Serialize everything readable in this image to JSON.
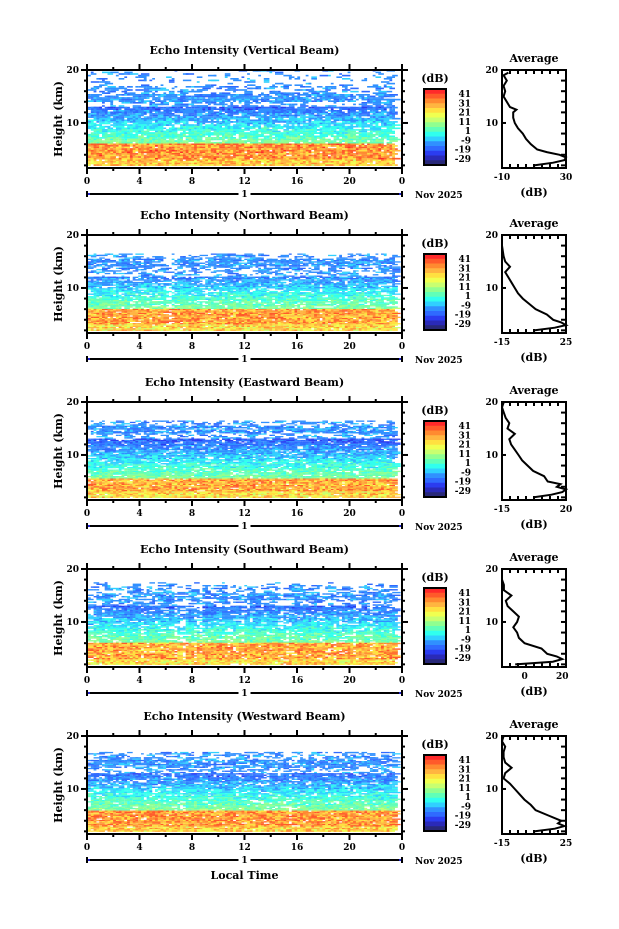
{
  "chart_data": {
    "type": "heatmap",
    "panels": [
      {
        "title": "Echo Intensity (Vertical Beam)",
        "ylabel": "Height (km)",
        "yticks": [
          "20",
          "10"
        ],
        "xticks": [
          "0",
          "4",
          "8",
          "12",
          "16",
          "20",
          "0"
        ],
        "day_label": "1",
        "month_label": "Nov 2025",
        "colorbar_unit": "(dB)",
        "colorbar_ticks": [
          "41",
          "31",
          "21",
          "11",
          "1",
          "-9",
          "-19",
          "-29"
        ],
        "avg_title": "Average",
        "avg_yticks": [
          "20",
          "10"
        ],
        "avg_xticks": [
          "-10",
          "30"
        ],
        "avg_xlim": [
          -10,
          30
        ],
        "avg_xlabel": "(dB)",
        "avg_profile": [
          [
            2,
            10
          ],
          [
            2.5,
            22
          ],
          [
            3,
            29
          ],
          [
            3.5,
            30
          ],
          [
            4,
            26
          ],
          [
            4.5,
            18
          ],
          [
            5,
            12
          ],
          [
            6,
            8
          ],
          [
            7,
            5
          ],
          [
            8,
            3
          ],
          [
            9,
            0
          ],
          [
            10,
            -2
          ],
          [
            11,
            -3
          ],
          [
            12,
            -3
          ],
          [
            12.5,
            -1
          ],
          [
            13,
            -5
          ],
          [
            14,
            -7
          ],
          [
            15,
            -9
          ],
          [
            16,
            -8
          ],
          [
            17,
            -9
          ],
          [
            18,
            -7
          ],
          [
            19,
            -9
          ],
          [
            19.5,
            -6
          ]
        ],
        "beam": {
          "top_km": 19.5,
          "strong_km": [
            2.5,
            6
          ],
          "mid_km": [
            6,
            13
          ],
          "gaps": 0.08,
          "hot": 0.8
        }
      },
      {
        "title": "Echo Intensity (Northward Beam)",
        "ylabel": "Height (km)",
        "yticks": [
          "20",
          "10"
        ],
        "xticks": [
          "0",
          "4",
          "8",
          "12",
          "16",
          "20",
          "0"
        ],
        "day_label": "1",
        "month_label": "Nov 2025",
        "colorbar_unit": "(dB)",
        "colorbar_ticks": [
          "41",
          "31",
          "21",
          "11",
          "1",
          "-9",
          "-19",
          "-29"
        ],
        "avg_title": "Average",
        "avg_yticks": [
          "20",
          "10"
        ],
        "avg_xticks": [
          "-15",
          "25"
        ],
        "avg_xlim": [
          -15,
          25
        ],
        "avg_xlabel": "(dB)",
        "avg_profile": [
          [
            2,
            5
          ],
          [
            2.5,
            18
          ],
          [
            3,
            25
          ],
          [
            3.5,
            22
          ],
          [
            4,
            17
          ],
          [
            5,
            13
          ],
          [
            6,
            6
          ],
          [
            7,
            2
          ],
          [
            8,
            -2
          ],
          [
            9,
            -5
          ],
          [
            10,
            -7
          ],
          [
            11,
            -9
          ],
          [
            12,
            -11
          ],
          [
            13,
            -13
          ],
          [
            14,
            -10
          ],
          [
            15,
            -13
          ],
          [
            16,
            -14
          ],
          [
            18,
            -15
          ],
          [
            20,
            -15
          ]
        ],
        "beam": {
          "top_km": 16,
          "strong_km": [
            2.5,
            6
          ],
          "mid_km": [
            6,
            12
          ],
          "gaps": 0.25,
          "hot": 0.5
        }
      },
      {
        "title": "Echo Intensity (Eastward Beam)",
        "ylabel": "Height (km)",
        "yticks": [
          "20",
          "10"
        ],
        "xticks": [
          "0",
          "4",
          "8",
          "12",
          "16",
          "20",
          "0"
        ],
        "day_label": "1",
        "month_label": "Nov 2025",
        "colorbar_unit": "(dB)",
        "colorbar_ticks": [
          "41",
          "31",
          "21",
          "11",
          "1",
          "-9",
          "-19",
          "-29"
        ],
        "avg_title": "Average",
        "avg_yticks": [
          "20",
          "10"
        ],
        "avg_xticks": [
          "-15",
          "20"
        ],
        "avg_xlim": [
          -15,
          20
        ],
        "avg_xlabel": "(dB)",
        "avg_profile": [
          [
            2,
            2
          ],
          [
            2.5,
            12
          ],
          [
            3,
            18
          ],
          [
            3.5,
            20
          ],
          [
            4,
            15
          ],
          [
            4.5,
            17
          ],
          [
            5,
            10
          ],
          [
            6,
            8
          ],
          [
            7,
            2
          ],
          [
            8,
            -1
          ],
          [
            9,
            -4
          ],
          [
            10,
            -6
          ],
          [
            11,
            -8
          ],
          [
            12,
            -10
          ],
          [
            13,
            -11
          ],
          [
            14,
            -8
          ],
          [
            15,
            -12
          ],
          [
            16,
            -11
          ],
          [
            17,
            -13
          ],
          [
            18,
            -14
          ],
          [
            19,
            -15
          ],
          [
            20,
            -14
          ]
        ],
        "beam": {
          "top_km": 16,
          "strong_km": [
            2.5,
            5.5
          ],
          "mid_km": [
            5.5,
            13
          ],
          "gaps": 0.15,
          "hot": 0.4
        }
      },
      {
        "title": "Echo Intensity (Southward Beam)",
        "ylabel": "Height (km)",
        "yticks": [
          "20",
          "10"
        ],
        "xticks": [
          "0",
          "4",
          "8",
          "12",
          "16",
          "20",
          "0"
        ],
        "day_label": "1",
        "month_label": "Nov 2025",
        "colorbar_unit": "(dB)",
        "colorbar_ticks": [
          "41",
          "31",
          "21",
          "11",
          "1",
          "-9",
          "-19",
          "-29"
        ],
        "avg_title": "Average",
        "avg_yticks": [
          "20",
          "10"
        ],
        "avg_xticks": [
          "0",
          "20"
        ],
        "avg_xlim": [
          -12,
          22
        ],
        "avg_xlabel": "(dB)",
        "avg_profile": [
          [
            2,
            -5
          ],
          [
            2.5,
            15
          ],
          [
            3,
            20
          ],
          [
            3.5,
            17
          ],
          [
            4,
            12
          ],
          [
            5,
            9
          ],
          [
            6,
            0
          ],
          [
            7,
            -3
          ],
          [
            8,
            -4
          ],
          [
            9,
            -6
          ],
          [
            10,
            -4
          ],
          [
            11,
            -3
          ],
          [
            12,
            -6
          ],
          [
            13,
            -9
          ],
          [
            14,
            -10
          ],
          [
            15,
            -7
          ],
          [
            16,
            -11
          ],
          [
            17,
            -11
          ],
          [
            18,
            -12
          ],
          [
            20,
            -12
          ]
        ],
        "beam": {
          "top_km": 17,
          "strong_km": [
            2.5,
            6
          ],
          "mid_km": [
            6,
            13
          ],
          "gaps": 0.45,
          "hot": 0.5
        }
      },
      {
        "title": "Echo Intensity (Westward Beam)",
        "ylabel": "Height (km)",
        "yticks": [
          "20",
          "10"
        ],
        "xticks": [
          "0",
          "4",
          "8",
          "12",
          "16",
          "20",
          "0"
        ],
        "day_label": "1",
        "month_label": "Nov 2025",
        "colorbar_unit": "(dB)",
        "colorbar_ticks": [
          "41",
          "31",
          "21",
          "11",
          "1",
          "-9",
          "-19",
          "-29"
        ],
        "avg_title": "Average",
        "avg_yticks": [
          "20",
          "10"
        ],
        "avg_xticks": [
          "-15",
          "25"
        ],
        "avg_xlim": [
          -15,
          25
        ],
        "avg_xlabel": "(dB)",
        "avg_profile": [
          [
            2,
            5
          ],
          [
            2.5,
            18
          ],
          [
            3,
            24
          ],
          [
            3.5,
            20
          ],
          [
            4,
            22
          ],
          [
            5,
            14
          ],
          [
            6,
            6
          ],
          [
            7,
            3
          ],
          [
            8,
            -1
          ],
          [
            9,
            -4
          ],
          [
            10,
            -7
          ],
          [
            11,
            -10
          ],
          [
            12,
            -14
          ],
          [
            13,
            -13
          ],
          [
            14,
            -9
          ],
          [
            15,
            -13
          ],
          [
            16,
            -14
          ],
          [
            17,
            -14
          ],
          [
            18,
            -13
          ],
          [
            19,
            -15
          ],
          [
            20,
            -14
          ]
        ],
        "beam": {
          "top_km": 16.5,
          "strong_km": [
            2.5,
            6
          ],
          "mid_km": [
            6,
            13
          ],
          "gaps": 0.08,
          "hot": 0.7
        }
      }
    ],
    "xlabel": "Local Time",
    "colorscale": [
      "#ff2a2a",
      "#ff5a2a",
      "#ff8a30",
      "#ffb540",
      "#ffe040",
      "#f0ff50",
      "#c8ff70",
      "#90ff90",
      "#60ffb8",
      "#30ffee",
      "#30d0ff",
      "#3090ff",
      "#2f6aff",
      "#2b3cf0",
      "#2a2ab8",
      "#282878"
    ],
    "range_db": [
      -29,
      46
    ]
  }
}
